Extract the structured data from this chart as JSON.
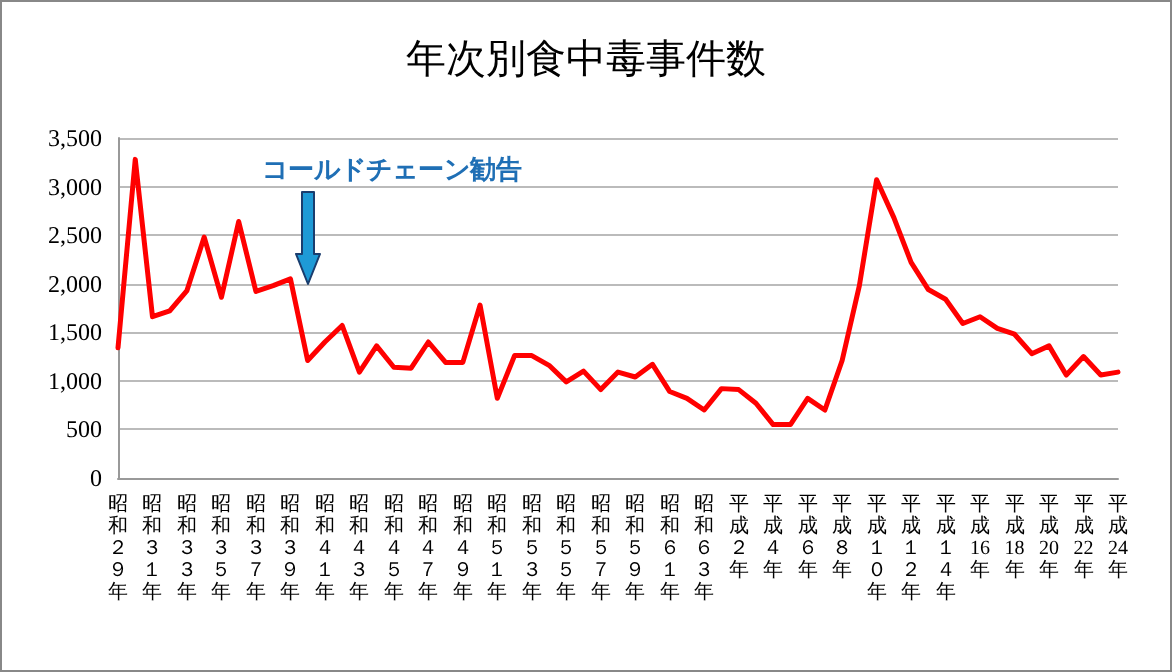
{
  "chart_data": {
    "type": "line",
    "title": "年次別食中毒事件数",
    "categories": [
      "昭和２９年",
      null,
      "昭和３１年",
      null,
      "昭和３３年",
      null,
      "昭和３５年",
      null,
      "昭和３７年",
      null,
      "昭和３９年",
      null,
      "昭和４１年",
      null,
      "昭和４３年",
      null,
      "昭和４５年",
      null,
      "昭和４７年",
      null,
      "昭和４９年",
      null,
      "昭和５１年",
      null,
      "昭和５３年",
      null,
      "昭和５５年",
      null,
      "昭和５７年",
      null,
      "昭和５９年",
      null,
      "昭和６１年",
      null,
      "昭和６３年",
      null,
      "平成２年",
      null,
      "平成４年",
      null,
      "平成６年",
      null,
      "平成８年",
      null,
      "平成１０年",
      null,
      "平成１２年",
      null,
      "平成１４年",
      null,
      "平成16年",
      null,
      "平成18年",
      null,
      "平成20年",
      null,
      "平成22年",
      null,
      "平成24年"
    ],
    "series": [
      {
        "color": "#ff0000",
        "values": [
          1340,
          3280,
          1660,
          1720,
          1930,
          2480,
          1860,
          2640,
          1920,
          1980,
          2050,
          1210,
          1400,
          1570,
          1090,
          1360,
          1140,
          1130,
          1400,
          1190,
          1190,
          1780,
          820,
          1260,
          1260,
          1160,
          990,
          1100,
          910,
          1090,
          1040,
          1170,
          890,
          820,
          700,
          920,
          910,
          770,
          550,
          550,
          820,
          700,
          1210,
          1980,
          3070,
          2680,
          2220,
          1940,
          1840,
          1590,
          1660,
          1540,
          1480,
          1280,
          1360,
          1060,
          1250,
          1060,
          1090
        ]
      }
    ],
    "ylim": [
      0,
      3500
    ],
    "yticks": [
      {
        "value": 0,
        "label": "0"
      },
      {
        "value": 500,
        "label": "500"
      },
      {
        "value": 1000,
        "label": "1,000"
      },
      {
        "value": 1500,
        "label": "1,500"
      },
      {
        "value": 2000,
        "label": "2,000"
      },
      {
        "value": 2500,
        "label": "2,500"
      },
      {
        "value": 3000,
        "label": "3,000"
      },
      {
        "value": 3500,
        "label": "3,500"
      }
    ],
    "grid": "y",
    "marker": "none",
    "line_style": "solid",
    "annotations": [
      "コールドチェーン勧告"
    ]
  }
}
